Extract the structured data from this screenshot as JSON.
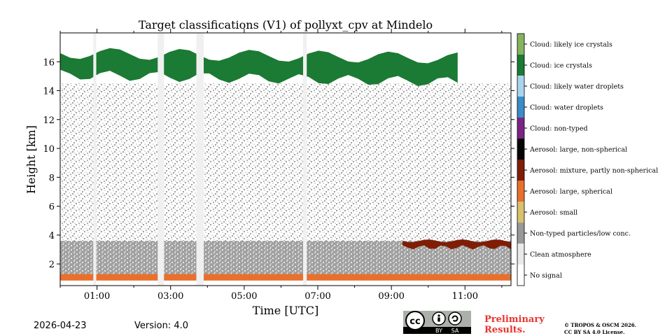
{
  "chart_data": {
    "type": "heatmap",
    "title": "Target classifications (V1) of pollyxt_cpv at Mindelo",
    "xlabel": "Time [UTC]",
    "ylabel": "Height [km]",
    "xlim": [
      0,
      12.25
    ],
    "ylim": [
      0.5,
      18
    ],
    "x_ticks": [
      {
        "value": 1,
        "label": "01:00"
      },
      {
        "value": 3,
        "label": "03:00"
      },
      {
        "value": 5,
        "label": "05:00"
      },
      {
        "value": 7,
        "label": "07:00"
      },
      {
        "value": 9,
        "label": "09:00"
      },
      {
        "value": 11,
        "label": "11:00"
      }
    ],
    "y_ticks": [
      {
        "value": 2,
        "label": "2"
      },
      {
        "value": 4,
        "label": "4"
      },
      {
        "value": 6,
        "label": "6"
      },
      {
        "value": 8,
        "label": "8"
      },
      {
        "value": 10,
        "label": "10"
      },
      {
        "value": 12,
        "label": "12"
      },
      {
        "value": 14,
        "label": "14"
      },
      {
        "value": 16,
        "label": "16"
      }
    ],
    "legend": [
      {
        "label": "Cloud: likely ice crystals",
        "color": "#86b35e"
      },
      {
        "label": "Cloud: ice crystals",
        "color": "#1b7a33"
      },
      {
        "label": "Cloud: likely water droplets",
        "color": "#a9d4f0"
      },
      {
        "label": "Cloud: water droplets",
        "color": "#3b8cc8"
      },
      {
        "label": "Cloud: non-typed",
        "color": "#7b2486"
      },
      {
        "label": "Aerosol: large, non-spherical",
        "color": "#050505"
      },
      {
        "label": "Aerosol: mixture, partly non-spherical",
        "color": "#7f1d05"
      },
      {
        "label": "Aerosol: large, spherical",
        "color": "#e8702d"
      },
      {
        "label": "Aerosol: small",
        "color": "#d9c06c"
      },
      {
        "label": "Non-typed particles/low conc.",
        "color": "#999999"
      },
      {
        "label": "Clean atmosphere",
        "color": "#e9e9e9"
      },
      {
        "label": "No signal",
        "color": "#ffffff"
      }
    ],
    "layers": [
      {
        "class": "Non-typed particles/low conc.",
        "time_start": 0,
        "time_end": 12.25,
        "height_base": 1.2,
        "height_top": 3.6,
        "density": "dense"
      },
      {
        "class": "Non-typed particles/low conc.",
        "time_start": 0,
        "time_end": 12.25,
        "height_base": 3.6,
        "height_top": 14.5,
        "density": "sparse"
      },
      {
        "class": "Aerosol: large, spherical",
        "time_start": 0,
        "time_end": 12.25,
        "height_base": 0.85,
        "height_top": 1.3
      },
      {
        "class": "Aerosol: mixture, partly non-spherical",
        "time_start": 9.3,
        "time_end": 12.25,
        "height_base": 2.8,
        "height_top": 3.6
      },
      {
        "class": "Cloud: ice crystals",
        "time_start": 0,
        "time_end": 10.8,
        "height_base": 14.3,
        "height_top": 16.6
      }
    ],
    "gaps": [
      {
        "time_start": 0.9,
        "time_end": 0.98
      },
      {
        "time_start": 2.65,
        "time_end": 2.82
      },
      {
        "time_start": 3.7,
        "time_end": 3.9
      },
      {
        "time_start": 6.6,
        "time_end": 6.7
      }
    ]
  },
  "footer": {
    "date": "2026-04-23",
    "version": "Version: 4.0",
    "preliminary": [
      "Preliminary",
      "Results."
    ],
    "copyright": [
      "© TROPOS & OSCM 2026.",
      "CC BY SA 4.0 License."
    ],
    "license_badge": {
      "cc": "cc",
      "by": "BY",
      "sa": "SA"
    }
  }
}
